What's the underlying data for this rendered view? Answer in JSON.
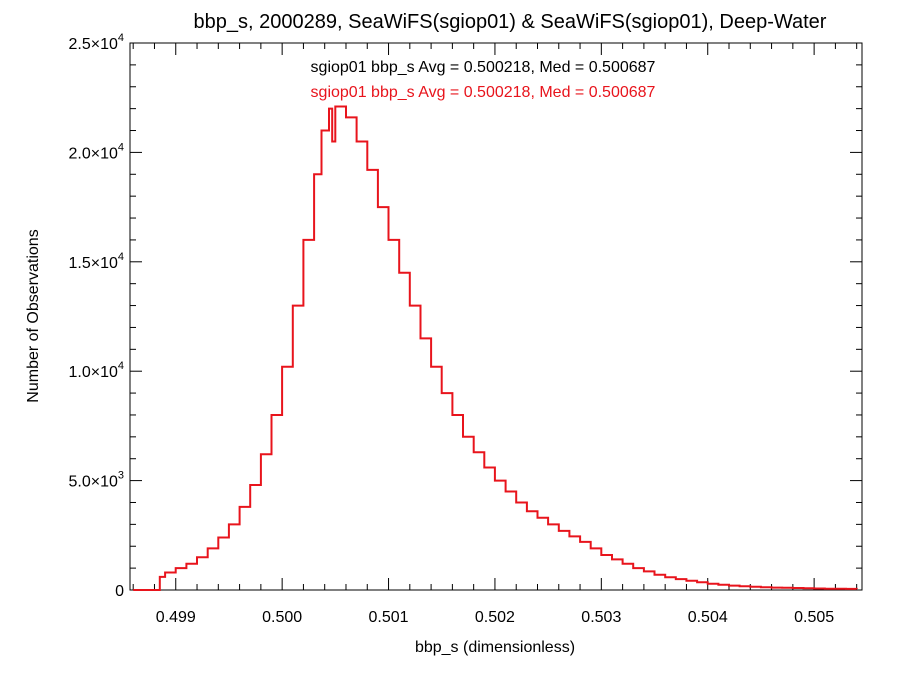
{
  "chart_data": {
    "type": "histogram",
    "title": "bbp_s, 2000289, SeaWiFS(sgiop01) & SeaWiFS(sgiop01), Deep-Water",
    "xlabel": "bbp_s (dimensionless)",
    "ylabel": "Number of Observations",
    "xlim": [
      0.49857,
      0.50545
    ],
    "ylim": [
      0,
      25000
    ],
    "x_ticks": [
      {
        "value": 0.499,
        "label": "0.499"
      },
      {
        "value": 0.5,
        "label": "0.500"
      },
      {
        "value": 0.501,
        "label": "0.501"
      },
      {
        "value": 0.502,
        "label": "0.502"
      },
      {
        "value": 0.503,
        "label": "0.503"
      },
      {
        "value": 0.504,
        "label": "0.504"
      },
      {
        "value": 0.505,
        "label": "0.505"
      }
    ],
    "y_ticks": [
      {
        "value": 0,
        "mant": "0",
        "exp": ""
      },
      {
        "value": 5000,
        "mant": "5.0×10",
        "exp": "3"
      },
      {
        "value": 10000,
        "mant": "1.0×10",
        "exp": "4"
      },
      {
        "value": 15000,
        "mant": "1.5×10",
        "exp": "4"
      },
      {
        "value": 20000,
        "mant": "2.0×10",
        "exp": "4"
      },
      {
        "value": 25000,
        "mant": "2.5×10",
        "exp": "4"
      }
    ],
    "annotations": [
      {
        "text": "sgiop01 bbp_s Avg = 0.500218, Med = 0.500687",
        "color": "#000000"
      },
      {
        "text": "sgiop01 bbp_s Avg = 0.500218, Med = 0.500687",
        "color": "#e8141c"
      }
    ],
    "series": [
      {
        "color": "#e8141c",
        "points": [
          [
            0.4986,
            0
          ],
          [
            0.49885,
            0
          ],
          [
            0.49885,
            600
          ],
          [
            0.4989,
            800
          ],
          [
            0.499,
            1000
          ],
          [
            0.4991,
            1200
          ],
          [
            0.4992,
            1500
          ],
          [
            0.4993,
            1900
          ],
          [
            0.4994,
            2400
          ],
          [
            0.4995,
            3000
          ],
          [
            0.4996,
            3800
          ],
          [
            0.4997,
            4800
          ],
          [
            0.4998,
            6200
          ],
          [
            0.4999,
            8000
          ],
          [
            0.5,
            10200
          ],
          [
            0.5001,
            13000
          ],
          [
            0.5002,
            16000
          ],
          [
            0.5003,
            19000
          ],
          [
            0.50037,
            21000
          ],
          [
            0.50044,
            22000
          ],
          [
            0.50047,
            20500
          ],
          [
            0.5005,
            22100
          ],
          [
            0.5006,
            21600
          ],
          [
            0.5007,
            20500
          ],
          [
            0.5008,
            19200
          ],
          [
            0.5009,
            17500
          ],
          [
            0.501,
            16000
          ],
          [
            0.5011,
            14500
          ],
          [
            0.5012,
            13000
          ],
          [
            0.5013,
            11500
          ],
          [
            0.5014,
            10200
          ],
          [
            0.5015,
            9000
          ],
          [
            0.5016,
            8000
          ],
          [
            0.5017,
            7000
          ],
          [
            0.5018,
            6300
          ],
          [
            0.5019,
            5600
          ],
          [
            0.502,
            5000
          ],
          [
            0.5021,
            4500
          ],
          [
            0.5022,
            4000
          ],
          [
            0.5023,
            3600
          ],
          [
            0.5024,
            3300
          ],
          [
            0.5025,
            3000
          ],
          [
            0.5026,
            2700
          ],
          [
            0.5027,
            2450
          ],
          [
            0.5028,
            2200
          ],
          [
            0.5029,
            1900
          ],
          [
            0.503,
            1600
          ],
          [
            0.5031,
            1400
          ],
          [
            0.5032,
            1200
          ],
          [
            0.5033,
            1000
          ],
          [
            0.5034,
            850
          ],
          [
            0.5035,
            700
          ],
          [
            0.5036,
            580
          ],
          [
            0.5037,
            500
          ],
          [
            0.5038,
            420
          ],
          [
            0.5039,
            350
          ],
          [
            0.504,
            290
          ],
          [
            0.5041,
            240
          ],
          [
            0.5042,
            200
          ],
          [
            0.5043,
            170
          ],
          [
            0.5044,
            150
          ],
          [
            0.5045,
            130
          ],
          [
            0.5046,
            110
          ],
          [
            0.5047,
            100
          ],
          [
            0.5048,
            90
          ],
          [
            0.5049,
            80
          ],
          [
            0.505,
            70
          ],
          [
            0.5051,
            60
          ],
          [
            0.5052,
            55
          ],
          [
            0.5053,
            50
          ],
          [
            0.5054,
            45
          ]
        ]
      }
    ]
  }
}
